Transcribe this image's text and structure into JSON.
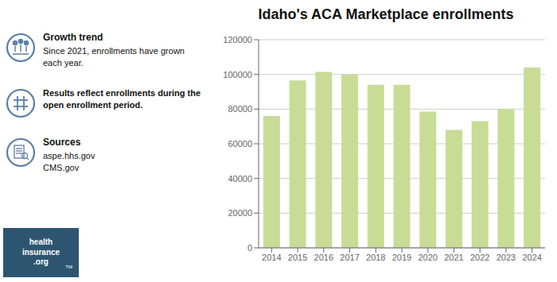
{
  "chart_data": {
    "type": "bar",
    "title": "Idaho's ACA Marketplace enrollments",
    "categories": [
      "2014",
      "2015",
      "2016",
      "2017",
      "2018",
      "2019",
      "2020",
      "2021",
      "2022",
      "2023",
      "2024"
    ],
    "values": [
      76000,
      96500,
      101500,
      100000,
      94000,
      94000,
      78500,
      68000,
      73000,
      80000,
      104000
    ],
    "color": "#c8dc96",
    "ylim": [
      0,
      120000
    ],
    "yticks": [
      0,
      20000,
      40000,
      60000,
      80000,
      100000,
      120000
    ],
    "grid": true,
    "annotations": [
      "Growth trend",
      "Since 2021, enrollments have grown\neach year.",
      "Results reflect enrollments during the\nopen enrollment period.",
      "Sources",
      "aspe.hhs.gov\nCMS.gov",
      "health\ninsurance\n.org",
      "TM"
    ]
  }
}
